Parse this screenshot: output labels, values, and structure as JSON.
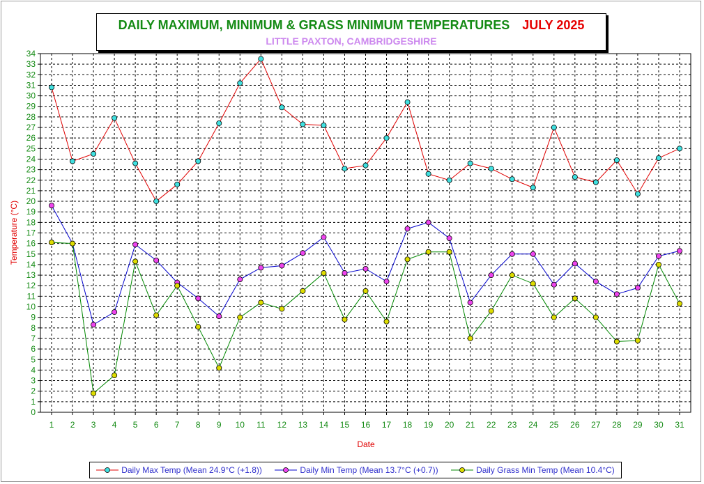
{
  "title": {
    "main": "DAILY MAXIMUM, MINIMUM & GRASS MINIMUM TEMPERATURES",
    "month": "JULY 2025",
    "subtitle": "LITTLE PAXTON, CAMBRIDGESHIRE"
  },
  "chart_data": {
    "type": "line",
    "xlabel": "Date",
    "ylabel": "Temperature (°C)",
    "ylim": [
      0,
      34
    ],
    "xlim": [
      1,
      31
    ],
    "grid": true,
    "legend_position": "bottom",
    "x": [
      1,
      2,
      3,
      4,
      5,
      6,
      7,
      8,
      9,
      10,
      11,
      12,
      13,
      14,
      15,
      16,
      17,
      18,
      19,
      20,
      21,
      22,
      23,
      24,
      25,
      26,
      27,
      28,
      29,
      30,
      31
    ],
    "series": [
      {
        "name": "Daily Max Temp (Mean 24.9°C (+1.8))",
        "line_color": "#e00000",
        "marker_color": "#40e0e0",
        "values": [
          30.8,
          23.8,
          24.5,
          27.9,
          23.6,
          20.0,
          21.6,
          23.8,
          27.4,
          31.2,
          33.5,
          28.9,
          27.3,
          27.2,
          23.1,
          23.4,
          26.0,
          29.4,
          22.6,
          22.0,
          23.6,
          23.1,
          22.1,
          21.3,
          27.0,
          22.3,
          21.8,
          23.9,
          20.7,
          24.1,
          25.0
        ]
      },
      {
        "name": "Daily Min Temp (Mean 13.7°C (+0.7))",
        "line_color": "#0000cc",
        "marker_color": "#ee44ee",
        "values": [
          19.6,
          16.0,
          8.3,
          9.5,
          15.9,
          14.4,
          12.3,
          10.8,
          9.1,
          12.6,
          13.7,
          13.9,
          15.1,
          16.6,
          13.2,
          13.6,
          12.4,
          17.4,
          18.0,
          16.5,
          10.4,
          13.0,
          15.0,
          15.0,
          12.1,
          14.1,
          12.4,
          11.2,
          11.8,
          14.8,
          15.3
        ]
      },
      {
        "name": "Daily Grass Min Temp (Mean 10.4°C)",
        "line_color": "#008800",
        "marker_color": "#dddd00",
        "values": [
          16.1,
          16.0,
          1.8,
          3.5,
          14.3,
          9.2,
          12.0,
          8.1,
          4.2,
          9.0,
          10.4,
          9.8,
          11.5,
          13.2,
          8.8,
          11.5,
          8.6,
          14.5,
          15.2,
          15.2,
          7.0,
          9.6,
          13.0,
          12.2,
          9.0,
          10.8,
          9.0,
          6.7,
          6.8,
          14.0,
          10.3
        ]
      }
    ]
  }
}
